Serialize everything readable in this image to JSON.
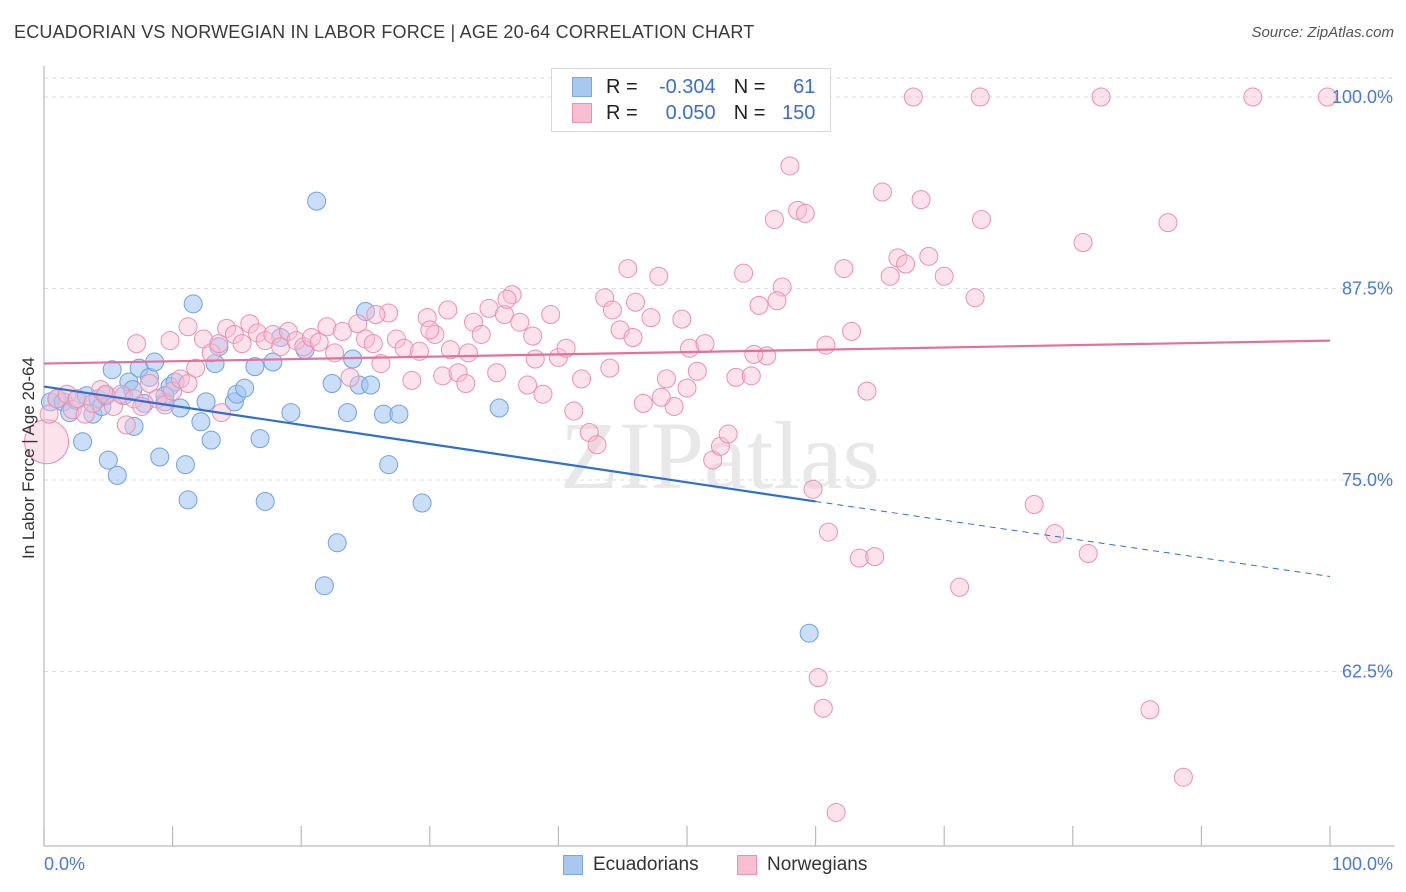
{
  "title": "ECUADORIAN VS NORWEGIAN IN LABOR FORCE | AGE 20-64 CORRELATION CHART",
  "source": "Source: ZipAtlas.com",
  "watermark": "ZIPatlas",
  "legend": {
    "rows": [
      {
        "r_label": "R =",
        "r_value": "-0.304",
        "n_label": "N =",
        "n_value": "61",
        "color": "#a9c8f0",
        "border": "#7aa6e0"
      },
      {
        "r_label": "R =",
        "r_value": "0.050",
        "n_label": "N =",
        "n_value": "150",
        "color": "#f8bfd3",
        "border": "#ee8fb0"
      }
    ]
  },
  "bottom_legend": [
    {
      "label": "Ecuadorians",
      "color": "#a9c8f0",
      "border": "#7aa6e0"
    },
    {
      "label": "Norwegians",
      "color": "#f8bfd3",
      "border": "#ee8fb0"
    }
  ],
  "chart_data": {
    "type": "scatter",
    "title": "ECUADORIAN VS NORWEGIAN IN LABOR FORCE | AGE 20-64 CORRELATION CHART",
    "xlabel": "",
    "ylabel": "In Labor Force | Age 20-64",
    "xlim": [
      0,
      100
    ],
    "ylim": [
      50,
      101.5
    ],
    "x_tick_labels": [
      {
        "value": 0,
        "label": "0.0%"
      },
      {
        "value": 100,
        "label": "100.0%"
      }
    ],
    "y_tick_labels": [
      {
        "value": 100,
        "label": "100.0%"
      },
      {
        "value": 87.5,
        "label": "87.5%"
      },
      {
        "value": 75,
        "label": "75.0%"
      },
      {
        "value": 62.5,
        "label": "62.5%"
      }
    ],
    "grid": true,
    "legend_position": "top-center",
    "series": [
      {
        "name": "Ecuadorians",
        "color": "#6fa0e6",
        "fill": "rgba(160,195,240,0.55)",
        "trend": {
          "x_start": 0,
          "y_start": 81.1,
          "x_end": 60,
          "y_end": 73.6,
          "dashed_to_x": 100,
          "dashed_to_y": 68.7,
          "color": "#2f6fd0"
        },
        "points": [
          [
            0.5,
            80.1
          ],
          [
            1,
            80.3
          ],
          [
            1.5,
            80.1
          ],
          [
            2,
            79.4
          ],
          [
            2.5,
            80.2
          ],
          [
            3,
            77.5
          ],
          [
            3.3,
            80.5
          ],
          [
            3.8,
            79.3
          ],
          [
            4.2,
            80.3
          ],
          [
            4.5,
            79.8
          ],
          [
            4.8,
            80.5
          ],
          [
            5,
            76.3
          ],
          [
            5.3,
            82.2
          ],
          [
            5.7,
            75.3
          ],
          [
            6.2,
            80.5
          ],
          [
            6.6,
            81.4
          ],
          [
            7,
            78.5
          ],
          [
            7.4,
            82.3
          ],
          [
            7.8,
            80
          ],
          [
            8.2,
            81.7
          ],
          [
            8.6,
            82.7
          ],
          [
            9,
            76.5
          ],
          [
            9.4,
            80.1
          ],
          [
            9.8,
            81.1
          ],
          [
            10.2,
            81.4
          ],
          [
            10.6,
            79.7
          ],
          [
            11,
            76
          ],
          [
            11.2,
            73.7
          ],
          [
            11.6,
            86.5
          ],
          [
            12.2,
            78.8
          ],
          [
            12.6,
            80.1
          ],
          [
            13,
            77.6
          ],
          [
            13.3,
            82.6
          ],
          [
            13.6,
            83.7
          ],
          [
            14.8,
            80.1
          ],
          [
            15,
            80.6
          ],
          [
            15.6,
            81
          ],
          [
            16.4,
            82.4
          ],
          [
            16.8,
            77.7
          ],
          [
            17.2,
            73.6
          ],
          [
            17.8,
            82.7
          ],
          [
            18.4,
            84.3
          ],
          [
            20.3,
            83.5
          ],
          [
            19.2,
            79.4
          ],
          [
            21.8,
            68.1
          ],
          [
            22.4,
            81.3
          ],
          [
            23.6,
            79.4
          ],
          [
            21.2,
            93.2
          ],
          [
            22.8,
            70.9
          ],
          [
            24.5,
            81.2
          ],
          [
            25,
            86
          ],
          [
            25.4,
            81.2
          ],
          [
            24,
            82.9
          ],
          [
            26.4,
            79.3
          ],
          [
            26.8,
            76
          ],
          [
            27.6,
            79.3
          ],
          [
            29.4,
            73.5
          ],
          [
            35.4,
            79.7
          ],
          [
            59.5,
            65
          ],
          [
            6.9,
            80.9
          ],
          [
            9.4,
            80.5
          ]
        ]
      },
      {
        "name": "Norwegians",
        "color": "#ee8fb0",
        "fill": "rgba(248,191,211,0.45)",
        "trend": {
          "x_start": 0,
          "y_start": 82.6,
          "x_end": 100,
          "y_end": 84.1,
          "color": "#e5709b"
        },
        "points": [
          [
            0.2,
            77.5
          ],
          [
            0.4,
            79.3
          ],
          [
            1,
            80.3
          ],
          [
            1.8,
            80.6
          ],
          [
            2.2,
            79.6
          ],
          [
            2.6,
            80.3
          ],
          [
            3.2,
            79.3
          ],
          [
            3.8,
            80
          ],
          [
            4.4,
            80.9
          ],
          [
            4.8,
            80.6
          ],
          [
            5.4,
            79.8
          ],
          [
            6,
            80.6
          ],
          [
            6.4,
            78.6
          ],
          [
            7,
            80.3
          ],
          [
            7.6,
            79.8
          ],
          [
            8.2,
            81.3
          ],
          [
            8.8,
            80.3
          ],
          [
            9.4,
            79.9
          ],
          [
            10,
            80.8
          ],
          [
            10.6,
            81.6
          ],
          [
            11.2,
            81.3
          ],
          [
            11.8,
            82.3
          ],
          [
            12.4,
            84.2
          ],
          [
            13,
            83.3
          ],
          [
            13.6,
            83.9
          ],
          [
            14.2,
            84.9
          ],
          [
            14.8,
            84.5
          ],
          [
            15.4,
            83.9
          ],
          [
            16,
            85.2
          ],
          [
            16.6,
            84.6
          ],
          [
            17.2,
            84.1
          ],
          [
            17.8,
            84.5
          ],
          [
            18.4,
            83.7
          ],
          [
            19,
            84.7
          ],
          [
            19.6,
            84.1
          ],
          [
            20.2,
            83.7
          ],
          [
            20.8,
            84.3
          ],
          [
            21.4,
            84
          ],
          [
            22,
            85
          ],
          [
            22.6,
            83.3
          ],
          [
            23.2,
            84.7
          ],
          [
            23.8,
            81.7
          ],
          [
            24.4,
            85.2
          ],
          [
            25,
            84.2
          ],
          [
            25.6,
            83.9
          ],
          [
            26.2,
            82.6
          ],
          [
            26.8,
            85.9
          ],
          [
            27.4,
            84.2
          ],
          [
            28,
            83.6
          ],
          [
            28.6,
            81.5
          ],
          [
            29.2,
            83.4
          ],
          [
            29.8,
            85.6
          ],
          [
            30.4,
            84.5
          ],
          [
            31,
            81.8
          ],
          [
            31.6,
            83.5
          ],
          [
            32.2,
            82
          ],
          [
            32.8,
            81.3
          ],
          [
            33.4,
            85.3
          ],
          [
            34,
            84.5
          ],
          [
            34.6,
            86.2
          ],
          [
            35.2,
            82
          ],
          [
            35.8,
            85.8
          ],
          [
            36.4,
            87.1
          ],
          [
            37,
            85.3
          ],
          [
            37.6,
            81.2
          ],
          [
            38.2,
            82.9
          ],
          [
            38.8,
            80.6
          ],
          [
            39.4,
            85.8
          ],
          [
            40,
            83
          ],
          [
            40.6,
            83.6
          ],
          [
            41.2,
            79.5
          ],
          [
            41.8,
            81.6
          ],
          [
            42.4,
            78.1
          ],
          [
            43,
            77.3
          ],
          [
            43.6,
            86.9
          ],
          [
            44.2,
            86.1
          ],
          [
            44.8,
            84.8
          ],
          [
            45.4,
            88.8
          ],
          [
            46,
            86.6
          ],
          [
            46.6,
            80
          ],
          [
            47.2,
            85.6
          ],
          [
            47.8,
            88.3
          ],
          [
            48.4,
            81.6
          ],
          [
            49,
            79.8
          ],
          [
            49.6,
            85.5
          ],
          [
            50.2,
            83.6
          ],
          [
            50.8,
            82.1
          ],
          [
            51.4,
            83.9
          ],
          [
            52,
            76.3
          ],
          [
            52.6,
            77.2
          ],
          [
            53.2,
            78
          ],
          [
            53.8,
            81.7
          ],
          [
            54.4,
            88.5
          ],
          [
            55,
            81.8
          ],
          [
            55.6,
            86.4
          ],
          [
            56.2,
            83.1
          ],
          [
            56.8,
            92
          ],
          [
            57.4,
            87.6
          ],
          [
            58,
            95.5
          ],
          [
            58.6,
            92.6
          ],
          [
            59.2,
            92.4
          ],
          [
            59.8,
            74.4
          ],
          [
            60.2,
            62.1
          ],
          [
            60.6,
            60.1
          ],
          [
            61,
            71.6
          ],
          [
            61.6,
            53.3
          ],
          [
            62.2,
            88.8
          ],
          [
            62.8,
            84.7
          ],
          [
            63.4,
            69.9
          ],
          [
            64,
            80.8
          ],
          [
            64.6,
            70
          ],
          [
            65.2,
            93.8
          ],
          [
            65.8,
            88.3
          ],
          [
            66.4,
            89.5
          ],
          [
            67,
            89.1
          ],
          [
            67.6,
            100
          ],
          [
            68.2,
            93.3
          ],
          [
            68.8,
            89.6
          ],
          [
            70,
            88.3
          ],
          [
            71.2,
            68
          ],
          [
            72.4,
            86.9
          ],
          [
            72.8,
            100
          ],
          [
            72.9,
            92
          ],
          [
            77,
            73.4
          ],
          [
            78.6,
            71.5
          ],
          [
            80.8,
            90.5
          ],
          [
            81.2,
            70.2
          ],
          [
            82.2,
            100
          ],
          [
            86,
            60
          ],
          [
            87.4,
            91.8
          ],
          [
            88.6,
            55.6
          ],
          [
            94,
            100
          ],
          [
            99.8,
            100
          ],
          [
            7.2,
            83.9
          ],
          [
            9.8,
            84.1
          ],
          [
            11.2,
            85
          ],
          [
            25.8,
            85.8
          ],
          [
            31.4,
            86.1
          ],
          [
            45.8,
            84.3
          ],
          [
            57,
            86.7
          ],
          [
            30,
            84.8
          ],
          [
            33,
            83.3
          ],
          [
            38,
            84.4
          ],
          [
            44,
            82.3
          ],
          [
            48,
            80.4
          ],
          [
            50,
            81
          ],
          [
            55.2,
            83.2
          ],
          [
            60.8,
            83.8
          ],
          [
            13.8,
            79.4
          ],
          [
            36,
            86.8
          ]
        ]
      }
    ]
  }
}
